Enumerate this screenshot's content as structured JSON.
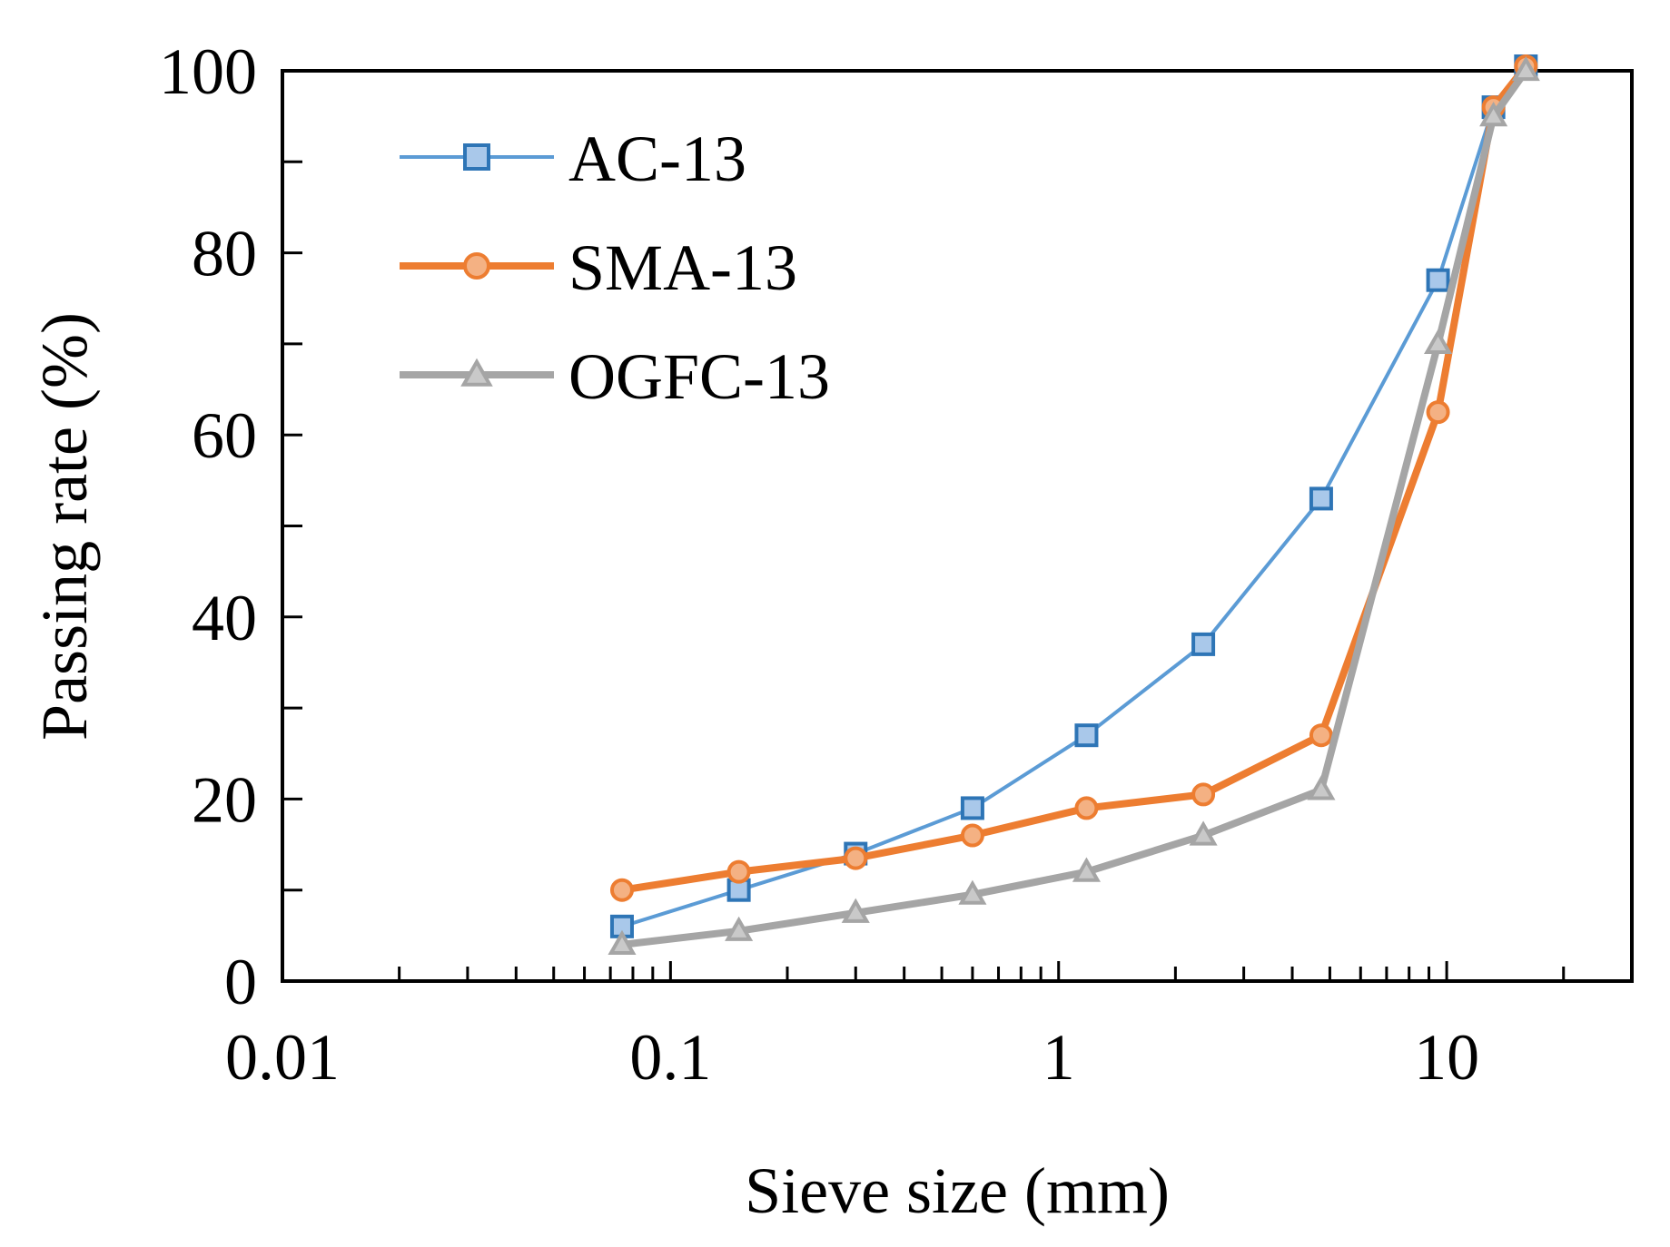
{
  "chart_data": {
    "type": "line",
    "title": "",
    "xlabel": "Sieve size (mm)",
    "ylabel": "Passing rate (%)",
    "xscale": "log",
    "xlim": [
      0.01,
      30
    ],
    "ylim": [
      0,
      100
    ],
    "xticks": [
      0.01,
      0.1,
      1,
      10
    ],
    "xtick_labels": [
      "0.01",
      "0.1",
      "1",
      "10"
    ],
    "yticks": [
      0,
      20,
      40,
      60,
      80,
      100
    ],
    "ytick_labels": [
      "0",
      "20",
      "40",
      "60",
      "80",
      "100"
    ],
    "y_minor_ticks": [
      10,
      30,
      50,
      70,
      90
    ],
    "grid": false,
    "legend_position": "top-left",
    "series": [
      {
        "name": "AC-13",
        "color": "#5b9bd5",
        "marker": "square",
        "marker_fill": "#a9c8ea",
        "marker_edge": "#2e75b6",
        "x": [
          0.075,
          0.15,
          0.3,
          0.6,
          1.18,
          2.36,
          4.75,
          9.5,
          13.2,
          16
        ],
        "y": [
          6,
          10,
          14,
          19,
          27,
          37,
          53,
          77,
          96,
          100.5
        ]
      },
      {
        "name": "SMA-13",
        "color": "#ed7d31",
        "marker": "circle",
        "marker_fill": "#f4b183",
        "marker_edge": "#ed7d31",
        "x": [
          0.075,
          0.15,
          0.3,
          0.6,
          1.18,
          2.36,
          4.75,
          9.5,
          13.2,
          16
        ],
        "y": [
          10,
          12,
          13.5,
          16,
          19,
          20.5,
          27,
          62.5,
          96,
          100.5
        ]
      },
      {
        "name": "OGFC-13",
        "color": "#a5a5a5",
        "marker": "triangle",
        "marker_fill": "#c9c9c9",
        "marker_edge": "#a5a5a5",
        "x": [
          0.075,
          0.15,
          0.3,
          0.6,
          1.18,
          2.36,
          4.75,
          9.5,
          13.2,
          16
        ],
        "y": [
          4,
          5.5,
          7.5,
          9.5,
          12,
          16,
          21,
          70,
          95,
          100
        ]
      }
    ]
  }
}
